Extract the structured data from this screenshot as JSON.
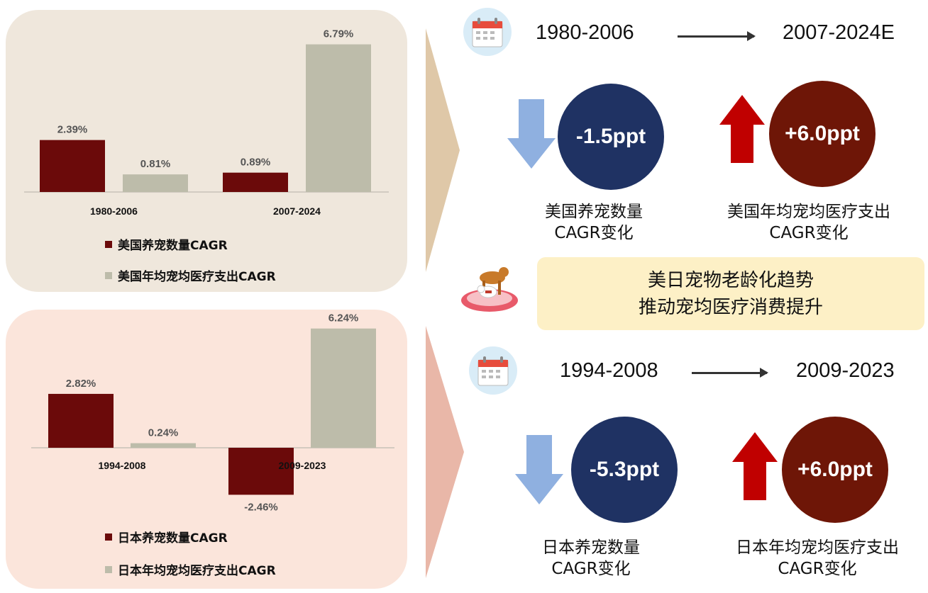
{
  "chart_data": [
    {
      "type": "bar",
      "categories": [
        "1980-2006",
        "2007-2024"
      ],
      "series": [
        {
          "name": "美国养宠数量CAGR",
          "values": [
            2.39,
            0.89
          ],
          "labels": [
            "2.39%",
            "0.89%"
          ],
          "color": "#6b0a0a"
        },
        {
          "name": "美国年均宠均医疗支出CAGR",
          "values": [
            0.81,
            6.79
          ],
          "labels": [
            "0.81%",
            "6.79%"
          ],
          "color": "#bdbcaa"
        }
      ],
      "ylim": [
        0,
        7.2
      ]
    },
    {
      "type": "bar",
      "categories": [
        "1994-2008",
        "2009-2023"
      ],
      "series": [
        {
          "name": "日本养宠数量CAGR",
          "values": [
            2.82,
            -2.46
          ],
          "labels": [
            "2.82%",
            "-2.46%"
          ],
          "color": "#6b0a0a"
        },
        {
          "name": "日本年均宠均医疗支出CAGR",
          "values": [
            0.24,
            6.24
          ],
          "labels": [
            "0.24%",
            "6.24%"
          ],
          "color": "#bdbcaa"
        }
      ],
      "ylim": [
        -2.8,
        6.6
      ]
    }
  ],
  "us": {
    "period_from": "1980-2006",
    "period_to": "2007-2024E",
    "count_change": "-1.5ppt",
    "count_caption_1": "美国养宠数量",
    "count_caption_2": "CAGR变化",
    "spend_change": "+6.0ppt",
    "spend_caption_1": "美国年均宠均医疗支出",
    "spend_caption_2": "CAGR变化"
  },
  "banner": {
    "line1": "美日宠物老龄化趋势",
    "line2": "推动宠均医疗消费提升"
  },
  "jp": {
    "period_from": "1994-2008",
    "period_to": "2009-2023",
    "count_change": "-5.3ppt",
    "count_caption_1": "日本养宠数量",
    "count_caption_2": "CAGR变化",
    "spend_change": "+6.0ppt",
    "spend_caption_1": "日本年均宠均医疗支出",
    "spend_caption_2": "CAGR变化"
  },
  "colors": {
    "down_arrow": "#8fb0e0",
    "up_arrow": "#c00000",
    "navy": "#1f3263",
    "maroon": "#6e1607"
  },
  "icons": [
    "calendar-icon",
    "pet-dogs-icon",
    "down-arrow-icon",
    "up-arrow-icon"
  ]
}
